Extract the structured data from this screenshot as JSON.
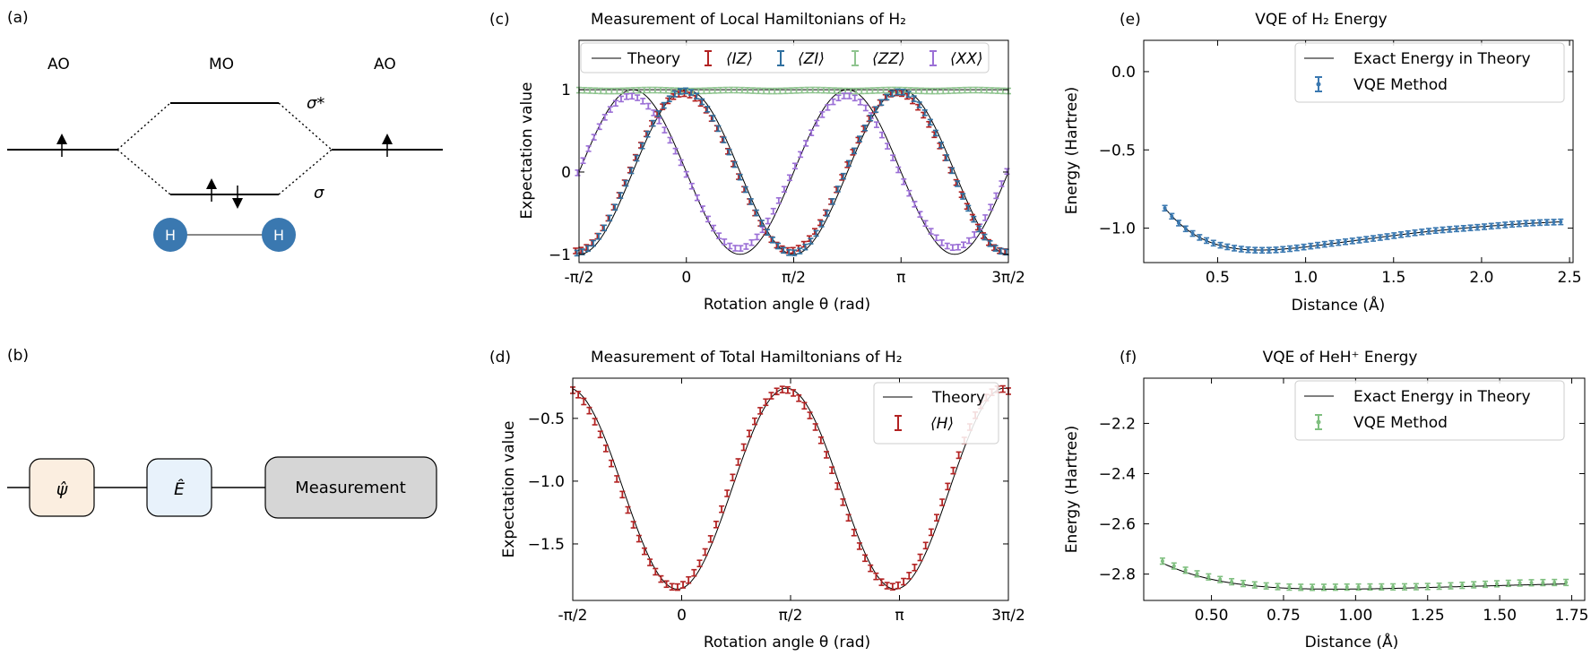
{
  "colors": {
    "iz": "#b22222",
    "zi": "#2f6f9f",
    "zz": "#8fc48f",
    "xx": "#9b6fd6",
    "h_total": "#b22222",
    "vqe_h2": "#3a78b0",
    "vqe_heh": "#7fbf7f",
    "h_atom": "#3a78b0",
    "psi_box": "#fbeee0",
    "e_box": "#e8f2fb",
    "meas_box": "#d6d6d6"
  },
  "panel_a": {
    "label": "(a)",
    "ao_left": "AO",
    "mo": "MO",
    "ao_right": "AO",
    "sigma_star": "σ*",
    "sigma": "σ",
    "atom_left": "H",
    "atom_right": "H"
  },
  "panel_b": {
    "label": "(b)",
    "psi": "ψ̂",
    "e_hat": "Ê",
    "measurement": "Measurement"
  },
  "chart_data": [
    {
      "id": "c",
      "type": "scatter",
      "panel_label": "(c)",
      "title": "Measurement of Local Hamiltonians of H₂",
      "xlabel": "Rotation angle θ (rad)",
      "ylabel": "Expectation value",
      "xlim": [
        -1.5708,
        4.7124
      ],
      "ylim": [
        -1.1,
        1.6
      ],
      "xticks": [
        -1.5708,
        0,
        1.5708,
        3.1416,
        4.7124
      ],
      "xtick_labels": [
        "-π/2",
        "0",
        "π/2",
        "π",
        "3π/2"
      ],
      "yticks": [
        -1,
        0,
        1
      ],
      "ytick_labels": [
        "−1",
        "0",
        "1"
      ],
      "legend": [
        "Theory",
        "⟨IZ⟩",
        "⟨ZI⟩",
        "⟨ZZ⟩",
        "⟨XX⟩"
      ],
      "series": [
        {
          "name": "Theory (IZ/ZI)",
          "kind": "line",
          "model": "cos(2θ)"
        },
        {
          "name": "Theory (XX)",
          "kind": "line",
          "model": "-sin(2θ)"
        },
        {
          "name": "Theory (ZZ)",
          "kind": "line",
          "model": "1"
        },
        {
          "name": "⟨IZ⟩",
          "kind": "errorbar",
          "model": "0.96·cos(2θ)",
          "points": 80
        },
        {
          "name": "⟨ZI⟩",
          "kind": "errorbar",
          "model": "0.98·cos(2θ)",
          "points": 80
        },
        {
          "name": "⟨ZZ⟩",
          "kind": "errorbar",
          "model": "0.99",
          "points": 80
        },
        {
          "name": "⟨XX⟩",
          "kind": "errorbar",
          "model": "-0.92·sin(2θ)",
          "points": 80
        }
      ]
    },
    {
      "id": "d",
      "type": "scatter",
      "panel_label": "(d)",
      "title": "Measurement of Total Hamiltonians of H₂",
      "xlabel": "Rotation angle θ (rad)",
      "ylabel": "Expectation value",
      "xlim": [
        -1.5708,
        4.7124
      ],
      "ylim": [
        -1.95,
        -0.18
      ],
      "xticks": [
        -1.5708,
        0,
        1.5708,
        3.1416,
        4.7124
      ],
      "xtick_labels": [
        "-π/2",
        "0",
        "π/2",
        "π",
        "3π/2"
      ],
      "yticks": [
        -1.5,
        -1.0,
        -0.5
      ],
      "ytick_labels": [
        "−1.5",
        "−1.0",
        "−0.5"
      ],
      "legend": [
        "Theory",
        "⟨H⟩"
      ],
      "series": [
        {
          "name": "Theory",
          "kind": "line",
          "model": "-1.06 - 0.8·cos(2θ + 0.12)"
        },
        {
          "name": "⟨H⟩",
          "kind": "errorbar",
          "model": "-1.055 - 0.79·cos(2θ + 0.2)",
          "points": 80
        }
      ]
    },
    {
      "id": "e",
      "type": "scatter",
      "panel_label": "(e)",
      "title": "VQE of H₂ Energy",
      "xlabel": "Distance (Å)",
      "ylabel": "Energy (Hartree)",
      "xlim": [
        0.08,
        2.52
      ],
      "ylim": [
        -1.22,
        0.2
      ],
      "xticks": [
        0.5,
        1.0,
        1.5,
        2.0,
        2.5
      ],
      "xtick_labels": [
        "0.5",
        "1.0",
        "1.5",
        "2.0",
        "2.5"
      ],
      "yticks": [
        -1.0,
        -0.5,
        0.0
      ],
      "ytick_labels": [
        "−1.0",
        "−0.5",
        "0.0"
      ],
      "legend": [
        "Exact Energy in Theory",
        "VQE Method"
      ],
      "series": [
        {
          "name": "Exact Energy in Theory",
          "kind": "line",
          "model": "Morse: De=0.22, a=1.38, re=0.74, E∞=-0.92"
        },
        {
          "name": "VQE Method",
          "kind": "errorbar",
          "x_range": [
            0.2,
            2.45
          ],
          "points": 58
        }
      ]
    },
    {
      "id": "f",
      "type": "scatter",
      "panel_label": "(f)",
      "title": "VQE of HeH⁺ Energy",
      "xlabel": "Distance (Å)",
      "ylabel": "Energy (Hartree)",
      "xlim": [
        0.265,
        1.795
      ],
      "ylim": [
        -2.905,
        -2.02
      ],
      "xticks": [
        0.5,
        0.75,
        1.0,
        1.25,
        1.5,
        1.75
      ],
      "xtick_labels": [
        "0.50",
        "0.75",
        "1.00",
        "1.25",
        "1.50",
        "1.75"
      ],
      "yticks": [
        -2.8,
        -2.6,
        -2.4,
        -2.2
      ],
      "ytick_labels": [
        "−2.8",
        "−2.6",
        "−2.4",
        "−2.2"
      ],
      "legend": [
        "Exact Energy in Theory",
        "VQE Method"
      ],
      "series": [
        {
          "name": "Exact Energy in Theory",
          "kind": "line",
          "model": "Morse: De=0.04, a=1.6, re=0.93, E∞=-2.82"
        },
        {
          "name": "VQE Method",
          "kind": "errorbar",
          "x_range": [
            0.33,
            1.73
          ],
          "points": 36
        }
      ]
    }
  ]
}
